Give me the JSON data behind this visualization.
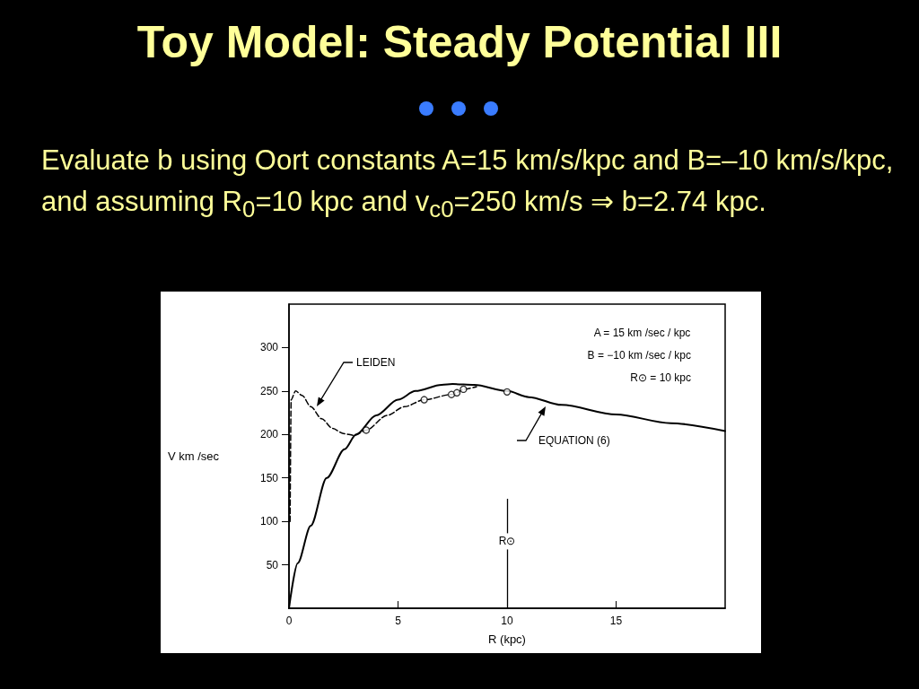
{
  "chart_data": {
    "type": "line",
    "title": "Toy Model: Steady Potential III",
    "subtitle": "Evaluate b using Oort constants A=15 km/s/kpc and B=–10 km/s/kpc, and assuming R$_{0}$=10 kpc and v$_{c0}$=250 km/s ⇒ b=2.74 kpc.",
    "xlabel": "R (kpc)",
    "ylabel": "V km /sec",
    "xlim": [
      0,
      20
    ],
    "xticks": [
      0,
      5,
      10,
      15
    ],
    "ylim": [
      0,
      350
    ],
    "yticks": [
      50,
      100,
      150,
      200,
      250,
      300
    ],
    "grid": false,
    "marker": "none",
    "series": [
      {
        "color": "#000000",
        "line_style": "solid",
        "x": [
          0,
          0.4,
          1,
          1.73,
          2.55,
          3.08,
          4,
          5,
          5.8,
          7,
          7.5,
          8.5,
          10,
          11,
          12.5,
          15,
          17.5,
          20
        ],
        "values": [
          0,
          52,
          95,
          150,
          183,
          200,
          222,
          240,
          250,
          257,
          258,
          257,
          250,
          243,
          234,
          223,
          213,
          204
        ]
      },
      {
        "color": "#000000",
        "line_style": "dashed",
        "x": [
          0.05,
          0.1,
          0.3,
          0.6,
          1,
          1.5,
          2,
          2.5,
          3,
          3.54,
          4.5,
          5.3,
          6.2,
          7.45,
          7.7,
          8,
          8.6
        ],
        "values": [
          100,
          240,
          250,
          245,
          232,
          218,
          207,
          201,
          199,
          205,
          222,
          232,
          240,
          246,
          248,
          252,
          255
        ]
      },
      {
        "type": "scatter",
        "color": "#000000",
        "marker": "circle",
        "x": [
          3.54,
          6.2,
          7.45,
          7.7,
          8,
          10
        ],
        "values": [
          205,
          240,
          246,
          248,
          252,
          249
        ]
      }
    ],
    "ref_lines": [
      {
        "axis": "x",
        "value": 10,
        "label": "R⊙",
        "color": "#000000"
      }
    ],
    "annotations": [
      "A = 15 km /sec / kpc",
      "B = −10 km /sec / kpc",
      "R⊙ = 10 kpc",
      "LEIDEN",
      "EQUATION (6)"
    ]
  }
}
